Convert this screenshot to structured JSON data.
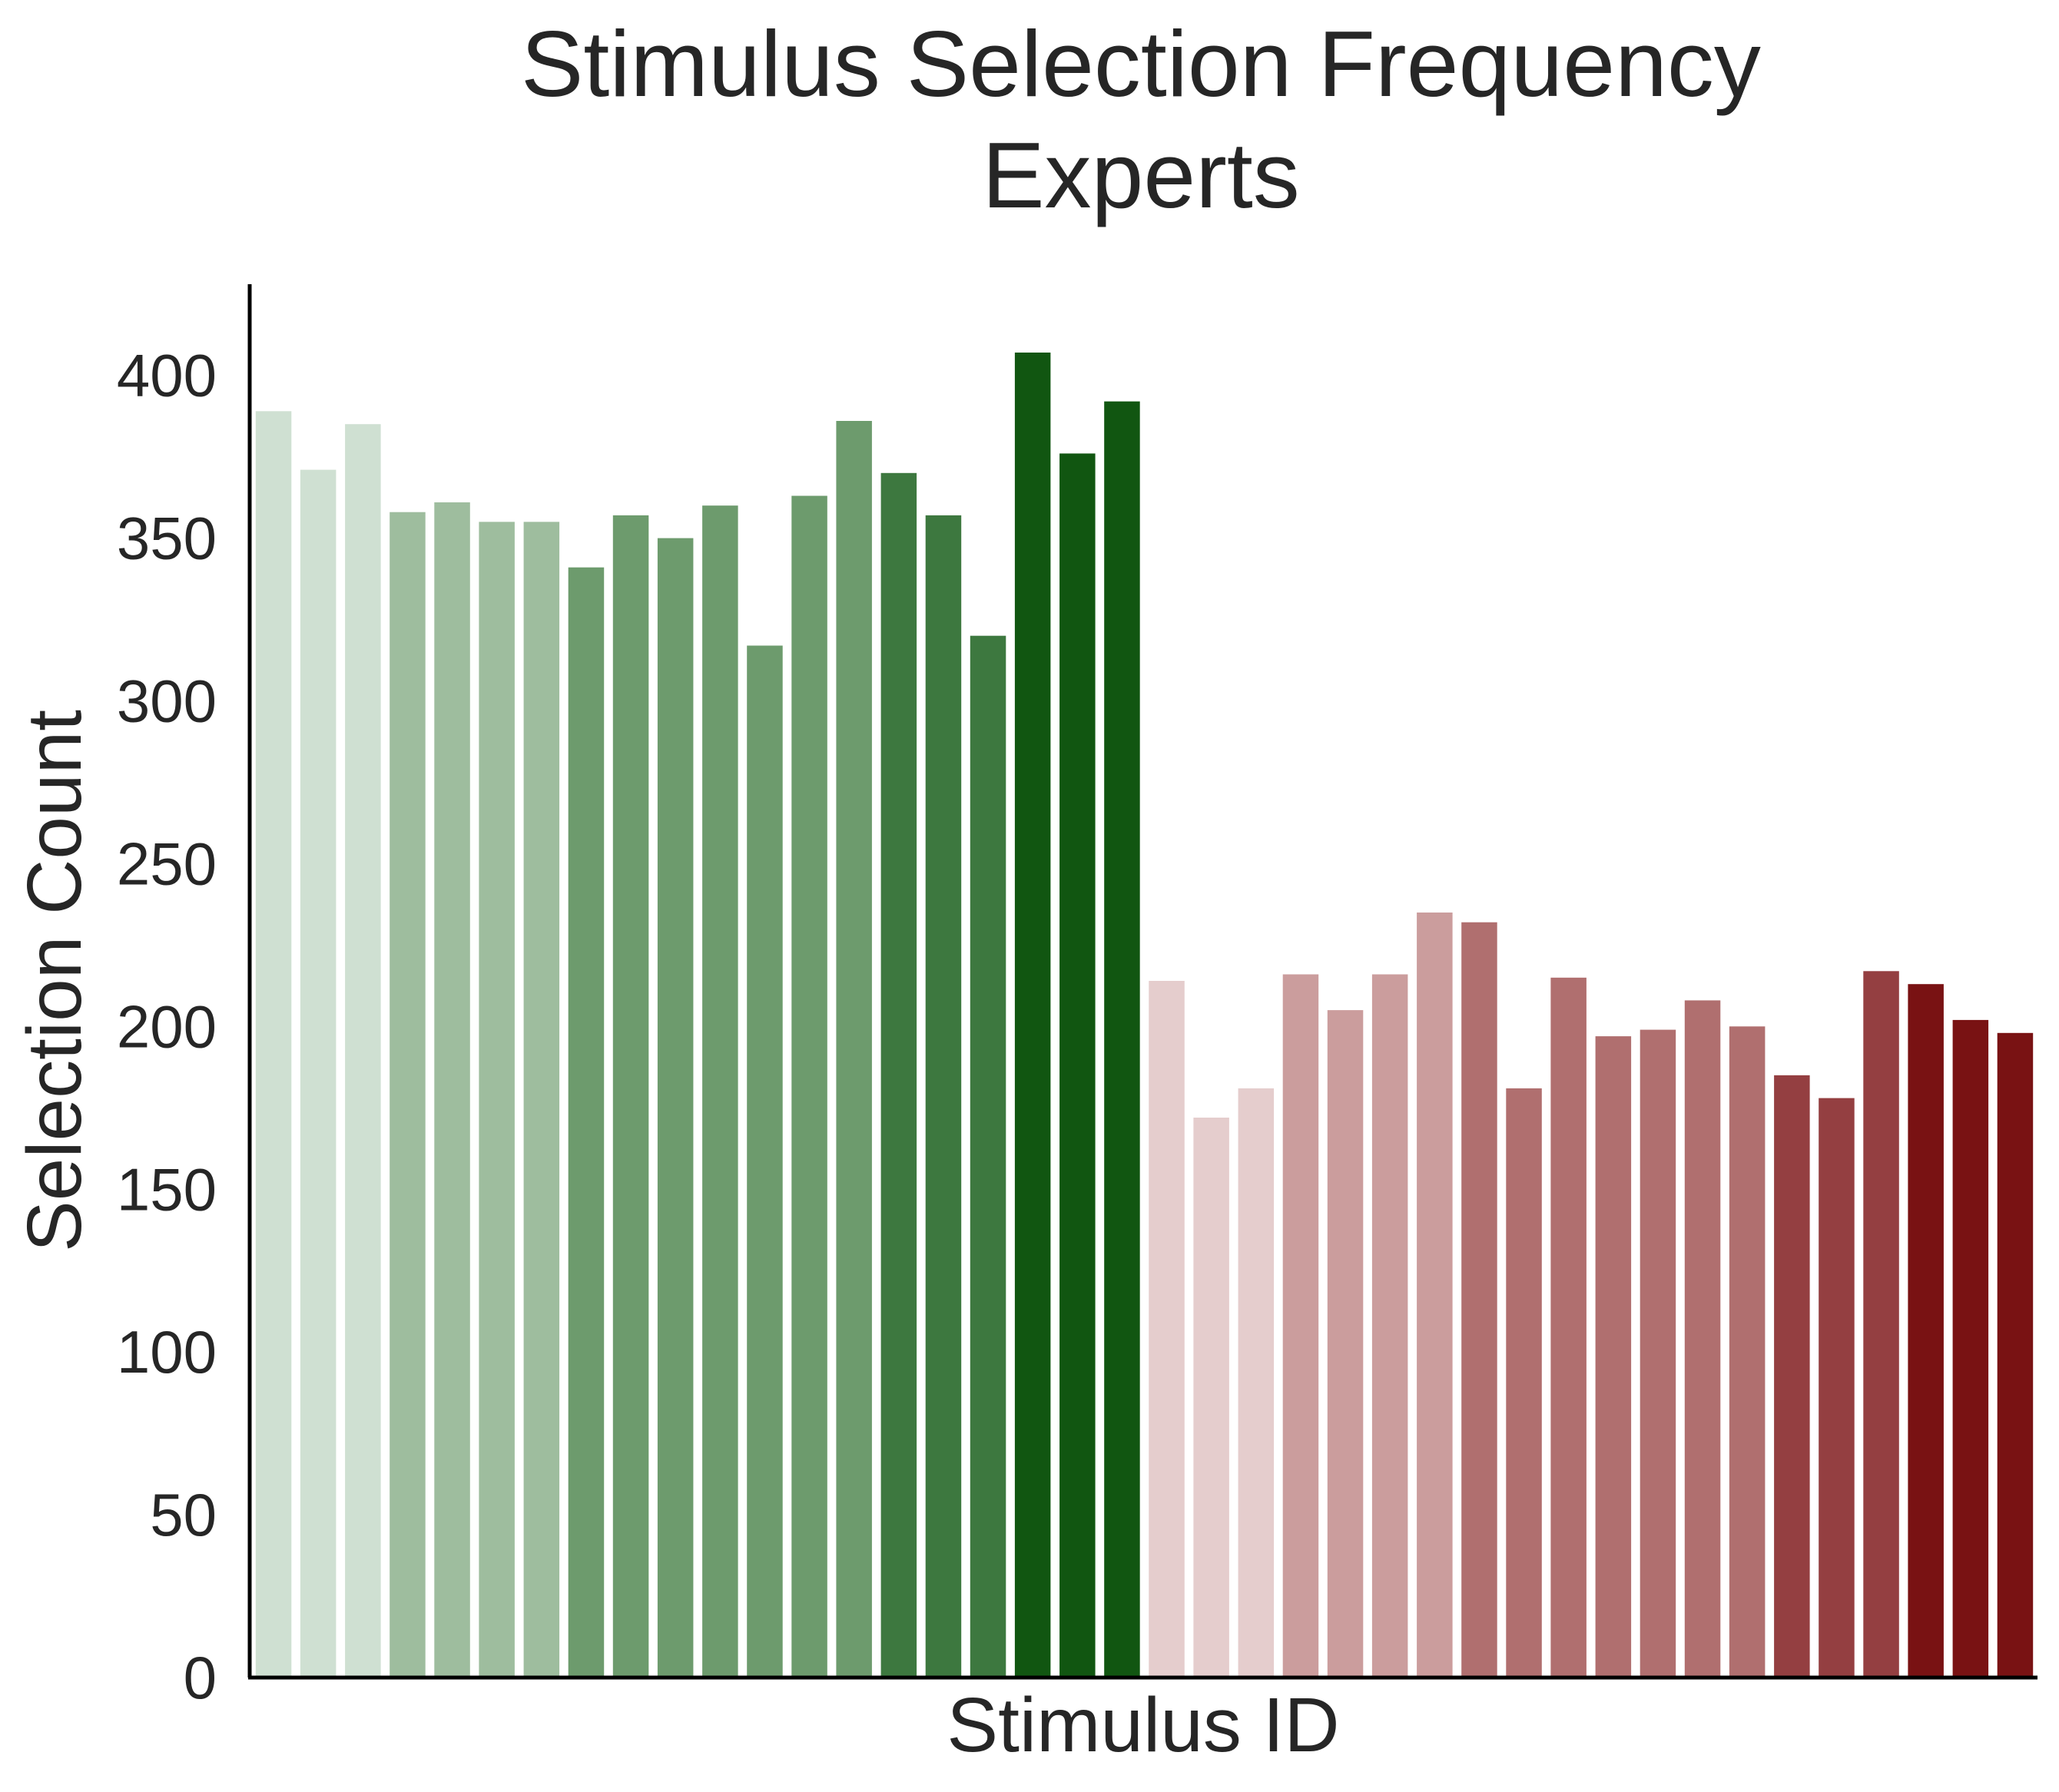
{
  "chart_data": {
    "type": "bar",
    "title": "Stimulus Selection Frequency",
    "subtitle": "Experts",
    "xlabel": "Stimulus ID",
    "ylabel": "Selection Count",
    "ylim": [
      0,
      428
    ],
    "yticks": [
      0,
      50,
      100,
      150,
      200,
      250,
      300,
      350,
      400
    ],
    "grid": false,
    "legend": "none",
    "values": [
      389,
      371,
      385,
      358,
      361,
      355,
      355,
      341,
      357,
      350,
      360,
      317,
      363,
      386,
      370,
      357,
      320,
      407,
      376,
      392,
      214,
      172,
      181,
      216,
      205,
      216,
      235,
      232,
      181,
      215,
      197,
      199,
      208,
      200,
      185,
      178,
      217,
      213,
      202,
      198
    ],
    "colors": [
      "#cfe0d2",
      "#cfe0d2",
      "#cfe0d2",
      "#9ebd9e",
      "#9ebd9e",
      "#9ebd9e",
      "#9ebd9e",
      "#6d9b6d",
      "#6d9b6d",
      "#6d9b6d",
      "#6d9b6d",
      "#6d9b6d",
      "#6d9b6d",
      "#6d9b6d",
      "#3d783f",
      "#3d783f",
      "#3d783f",
      "#115611",
      "#115611",
      "#115611",
      "#e5cdcd",
      "#e5cdcd",
      "#e5cdcd",
      "#cb9d9d",
      "#cb9d9d",
      "#cb9d9d",
      "#cb9d9d",
      "#b06f6f",
      "#b06f6f",
      "#b06f6f",
      "#b06f6f",
      "#b06f6f",
      "#b06f6f",
      "#b06f6f",
      "#943f41",
      "#943f41",
      "#943f41",
      "#791213",
      "#791213",
      "#791213"
    ]
  }
}
